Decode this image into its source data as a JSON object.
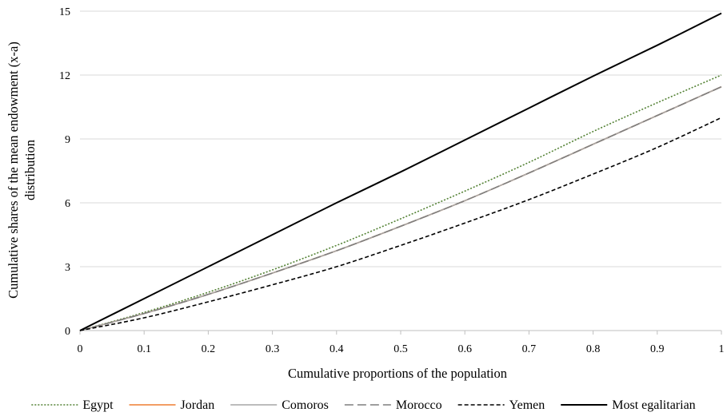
{
  "chart_data": {
    "type": "line",
    "title": "",
    "xlabel": "Cumulative proportions of the population",
    "ylabel_lines": [
      "Cumulative shares of the mean endowment (x-a)",
      "distribution"
    ],
    "xlim": [
      0,
      1
    ],
    "ylim": [
      0,
      15
    ],
    "x_ticks": [
      0,
      0.1,
      0.2,
      0.3,
      0.4,
      0.5,
      0.6,
      0.7,
      0.8,
      0.9,
      1
    ],
    "y_ticks": [
      0,
      3,
      6,
      9,
      12,
      15
    ],
    "grid": "horizontal",
    "legend_position": "bottom",
    "x": [
      0,
      0.1,
      0.2,
      0.3,
      0.4,
      0.5,
      0.6,
      0.7,
      0.8,
      0.9,
      1
    ],
    "series": [
      {
        "name": "Egypt",
        "color": "#548235",
        "dash": "dotted",
        "values": [
          0,
          0.85,
          1.8,
          2.85,
          4.0,
          5.25,
          6.55,
          7.9,
          9.35,
          10.7,
          12.0
        ]
      },
      {
        "name": "Jordan",
        "color": "#ed7d31",
        "dash": "solid",
        "values": [
          0,
          0.8,
          1.7,
          2.7,
          3.75,
          4.9,
          6.1,
          7.4,
          8.75,
          10.1,
          11.45
        ]
      },
      {
        "name": "Comoros",
        "color": "#a5a5a5",
        "dash": "solid",
        "values": [
          0,
          0.8,
          1.7,
          2.7,
          3.75,
          4.9,
          6.1,
          7.4,
          8.75,
          10.1,
          11.45
        ]
      },
      {
        "name": "Morocco",
        "color": "#7f7f7f",
        "dash": "longdash",
        "values": [
          0,
          0.8,
          1.7,
          2.7,
          3.75,
          4.9,
          6.1,
          7.4,
          8.75,
          10.1,
          11.45
        ]
      },
      {
        "name": "Yemen",
        "color": "#000000",
        "dash": "shortdash",
        "values": [
          0,
          0.6,
          1.35,
          2.15,
          3.0,
          4.0,
          5.05,
          6.15,
          7.35,
          8.6,
          10.0
        ]
      },
      {
        "name": "Most egalitarian",
        "color": "#000000",
        "dash": "solid",
        "values": [
          0,
          1.5,
          3.0,
          4.5,
          6.0,
          7.45,
          8.95,
          10.45,
          11.95,
          13.4,
          14.9
        ]
      }
    ]
  }
}
